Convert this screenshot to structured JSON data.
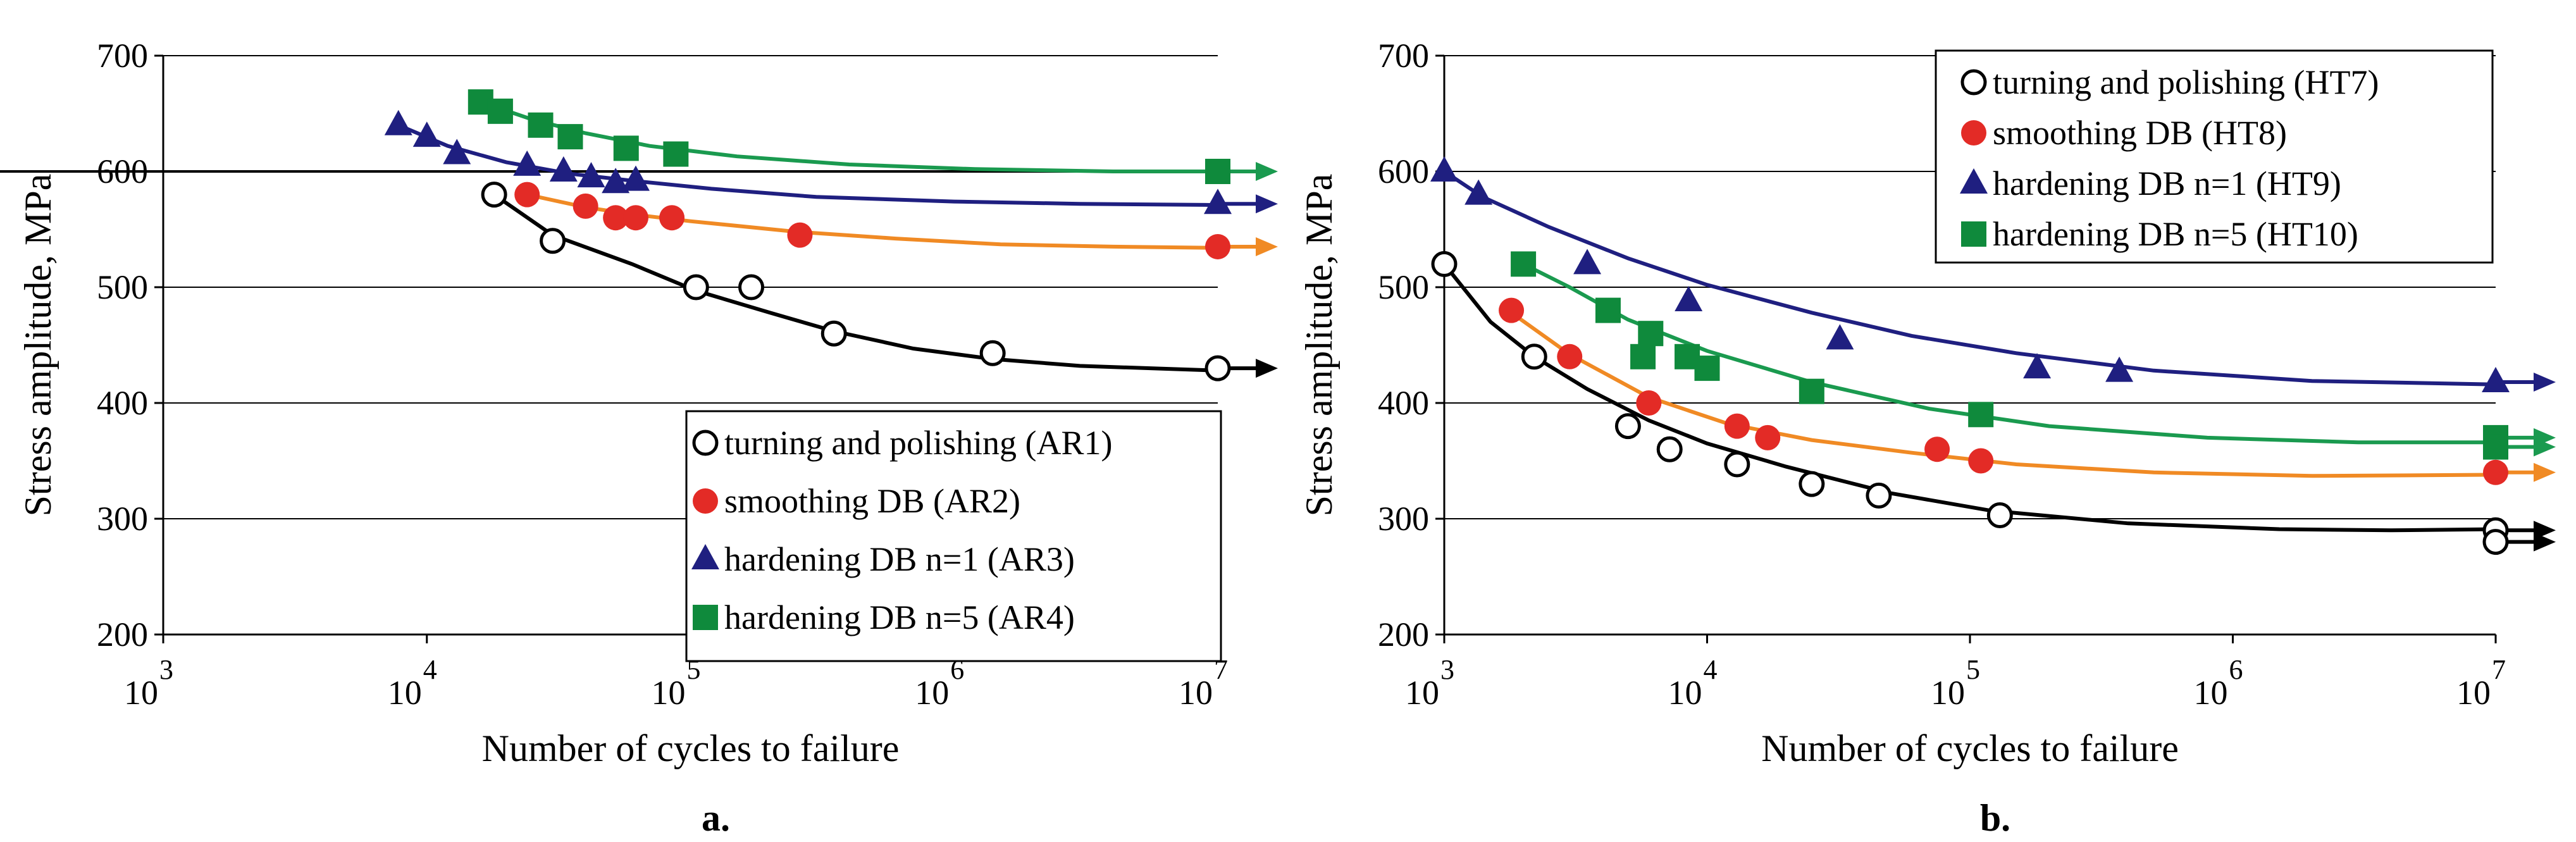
{
  "chart_data": [
    {
      "type": "scatter",
      "panel_label": "a.",
      "xlabel": "Number of cycles to failure",
      "ylabel": "Stress amplitude, MPa",
      "x_scale": "log",
      "xlim": [
        1000,
        10000000
      ],
      "ylim": [
        200,
        700
      ],
      "x_ticks": [
        {
          "base": "10",
          "exp": "3"
        },
        {
          "base": "10",
          "exp": "4"
        },
        {
          "base": "10",
          "exp": "5"
        },
        {
          "base": "10",
          "exp": "6"
        },
        {
          "base": "10",
          "exp": "7"
        }
      ],
      "y_ticks": [
        "200",
        "300",
        "400",
        "500",
        "600",
        "700"
      ],
      "grid": "horizontal",
      "reference_line": 600,
      "legend_position": "bottom-right",
      "series": [
        {
          "name": "turning and polishing (AR1)",
          "marker": "circle-open",
          "color": "#000000",
          "curve_color": "#000000",
          "points": [
            [
              18000,
              580
            ],
            [
              30000,
              540
            ],
            [
              105000,
              500
            ],
            [
              170000,
              500
            ],
            [
              350000,
              460
            ],
            [
              1400000,
              443
            ],
            [
              10000000,
              430
            ]
          ],
          "fit": [
            [
              18000,
              580
            ],
            [
              30000,
              545
            ],
            [
              60000,
              520
            ],
            [
              105000,
              497
            ],
            [
              200000,
              478
            ],
            [
              350000,
              462
            ],
            [
              700000,
              447
            ],
            [
              1400000,
              438
            ],
            [
              3000000,
              432
            ],
            [
              10000000,
              428
            ]
          ],
          "runout": [
            [
              10000000,
              430
            ]
          ]
        },
        {
          "name": "smoothing DB (AR2)",
          "marker": "circle",
          "color": "#e32b26",
          "curve_color": "#f08a24",
          "points": [
            [
              24000,
              580
            ],
            [
              40000,
              570
            ],
            [
              52000,
              560
            ],
            [
              62000,
              560
            ],
            [
              85000,
              560
            ],
            [
              260000,
              545
            ],
            [
              10000000,
              535
            ]
          ],
          "fit": [
            [
              24000,
              580
            ],
            [
              40000,
              569
            ],
            [
              60000,
              563
            ],
            [
              100000,
              557
            ],
            [
              250000,
              548
            ],
            [
              600000,
              542
            ],
            [
              1500000,
              537
            ],
            [
              4000000,
              535
            ],
            [
              10000000,
              534
            ]
          ],
          "runout": [
            [
              10000000,
              535
            ]
          ]
        },
        {
          "name": "hardening DB n=1 (AR3)",
          "marker": "triangle",
          "color": "#1f1f80",
          "curve_color": "#1f1f80",
          "points": [
            [
              7800,
              640
            ],
            [
              10000,
              630
            ],
            [
              13000,
              615
            ],
            [
              24000,
              605
            ],
            [
              33000,
              600
            ],
            [
              42000,
              595
            ],
            [
              52000,
              590
            ],
            [
              62000,
              592
            ],
            [
              10000000,
              572
            ]
          ],
          "fit": [
            [
              7800,
              640
            ],
            [
              12000,
              622
            ],
            [
              20000,
              608
            ],
            [
              35000,
              598
            ],
            [
              60000,
              592
            ],
            [
              120000,
              585
            ],
            [
              300000,
              578
            ],
            [
              1000000,
              574
            ],
            [
              3000000,
              572
            ],
            [
              10000000,
              571
            ]
          ],
          "runout": [
            [
              10000000,
              572
            ]
          ]
        },
        {
          "name": "hardening DB n=5 (AR4)",
          "marker": "square",
          "color": "#0f8a3c",
          "curve_color": "#1a9a4f",
          "points": [
            [
              16000,
              660
            ],
            [
              19000,
              652
            ],
            [
              27000,
              640
            ],
            [
              35000,
              630
            ],
            [
              57000,
              620
            ],
            [
              88000,
              615
            ],
            [
              10000000,
              600
            ]
          ],
          "fit": [
            [
              16000,
              660
            ],
            [
              25000,
              645
            ],
            [
              40000,
              633
            ],
            [
              70000,
              622
            ],
            [
              150000,
              613
            ],
            [
              400000,
              606
            ],
            [
              1200000,
              602
            ],
            [
              4000000,
              600
            ],
            [
              10000000,
              600
            ]
          ],
          "runout": [
            [
              10000000,
              600
            ]
          ]
        }
      ]
    },
    {
      "type": "scatter",
      "panel_label": "b.",
      "xlabel": "Number of cycles to failure",
      "ylabel": "Stress amplitude, MPa",
      "x_scale": "log",
      "xlim": [
        1000,
        10000000
      ],
      "ylim": [
        200,
        700
      ],
      "x_ticks": [
        {
          "base": "10",
          "exp": "3"
        },
        {
          "base": "10",
          "exp": "4"
        },
        {
          "base": "10",
          "exp": "5"
        },
        {
          "base": "10",
          "exp": "6"
        },
        {
          "base": "10",
          "exp": "7"
        }
      ],
      "y_ticks": [
        "200",
        "300",
        "400",
        "500",
        "600",
        "700"
      ],
      "grid": "horizontal",
      "legend_position": "top-right",
      "series": [
        {
          "name": "turning and polishing (HT7)",
          "marker": "circle-open",
          "color": "#000000",
          "curve_color": "#000000",
          "points": [
            [
              1000,
              520
            ],
            [
              2200,
              440
            ],
            [
              5000,
              380
            ],
            [
              7200,
              360
            ],
            [
              13000,
              347
            ],
            [
              25000,
              330
            ],
            [
              45000,
              320
            ],
            [
              130000,
              303
            ],
            [
              10000000,
              290
            ],
            [
              10000000,
              280
            ]
          ],
          "fit": [
            [
              1000,
              520
            ],
            [
              1500,
              470
            ],
            [
              2200,
              440
            ],
            [
              3500,
              412
            ],
            [
              6000,
              385
            ],
            [
              10000,
              365
            ],
            [
              20000,
              345
            ],
            [
              50000,
              322
            ],
            [
              120000,
              307
            ],
            [
              400000,
              296
            ],
            [
              1500000,
              291
            ],
            [
              4000000,
              290
            ],
            [
              10000000,
              291
            ]
          ],
          "runout": [
            [
              10000000,
              290
            ],
            [
              10000000,
              280
            ]
          ]
        },
        {
          "name": "smoothing DB (HT8)",
          "marker": "circle",
          "color": "#e32b26",
          "curve_color": "#f08a24",
          "points": [
            [
              1800,
              480
            ],
            [
              3000,
              440
            ],
            [
              6000,
              400
            ],
            [
              13000,
              380
            ],
            [
              17000,
              370
            ],
            [
              75000,
              360
            ],
            [
              110000,
              350
            ],
            [
              10000000,
              340
            ]
          ],
          "fit": [
            [
              1800,
              478
            ],
            [
              3000,
              442
            ],
            [
              6000,
              405
            ],
            [
              12000,
              382
            ],
            [
              25000,
              368
            ],
            [
              60000,
              357
            ],
            [
              150000,
              347
            ],
            [
              500000,
              340
            ],
            [
              2000000,
              337
            ],
            [
              10000000,
              338
            ]
          ],
          "runout": [
            [
              10000000,
              340
            ]
          ]
        },
        {
          "name": "hardening DB n=1 (HT9)",
          "marker": "triangle",
          "color": "#1f1f80",
          "curve_color": "#1f1f80",
          "points": [
            [
              1000,
              600
            ],
            [
              1350,
              580
            ],
            [
              3500,
              520
            ],
            [
              8500,
              488
            ],
            [
              32000,
              455
            ],
            [
              180000,
              430
            ],
            [
              370000,
              427
            ],
            [
              10000000,
              418
            ]
          ],
          "fit": [
            [
              1000,
              600
            ],
            [
              1400,
              578
            ],
            [
              2500,
              552
            ],
            [
              5000,
              525
            ],
            [
              10000,
              502
            ],
            [
              25000,
              478
            ],
            [
              60000,
              458
            ],
            [
              150000,
              443
            ],
            [
              500000,
              428
            ],
            [
              2000000,
              419
            ],
            [
              10000000,
              416
            ]
          ],
          "runout": [
            [
              10000000,
              418
            ]
          ]
        },
        {
          "name": "hardening DB n=5 (HT10)",
          "marker": "square",
          "color": "#0f8a3c",
          "curve_color": "#1a9a4f",
          "points": [
            [
              2000,
              520
            ],
            [
              4200,
              480
            ],
            [
              5700,
              440
            ],
            [
              6100,
              460
            ],
            [
              8400,
              440
            ],
            [
              10000,
              430
            ],
            [
              25000,
              410
            ],
            [
              110000,
              390
            ],
            [
              10000000,
              370
            ],
            [
              10000000,
              362
            ]
          ],
          "fit": [
            [
              2000,
              520
            ],
            [
              3000,
              500
            ],
            [
              5000,
              472
            ],
            [
              10000,
              445
            ],
            [
              25000,
              418
            ],
            [
              70000,
              395
            ],
            [
              200000,
              380
            ],
            [
              800000,
              370
            ],
            [
              3000000,
              366
            ],
            [
              10000000,
              366
            ]
          ],
          "runout": [
            [
              10000000,
              370
            ],
            [
              10000000,
              362
            ]
          ]
        }
      ]
    }
  ]
}
